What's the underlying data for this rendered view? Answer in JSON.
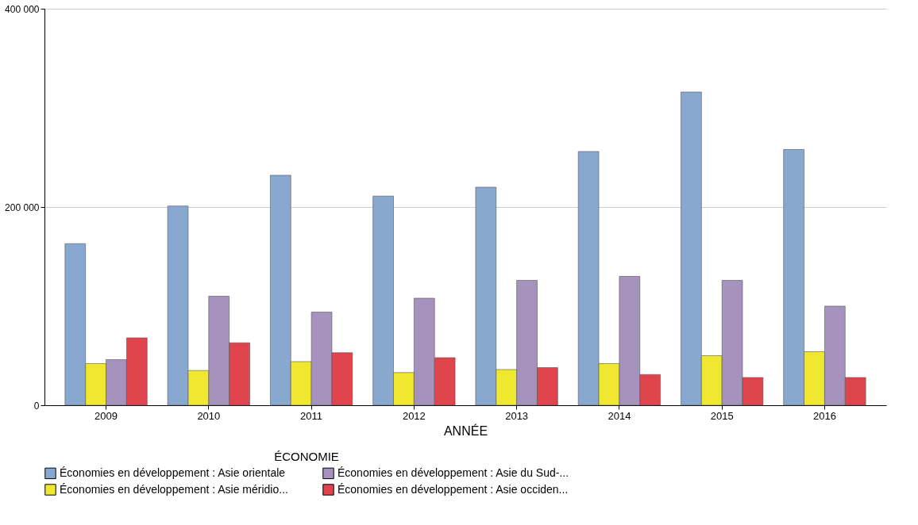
{
  "chart_data": {
    "type": "bar",
    "xlabel": "ANNÉE",
    "legend_title": "ÉCONOMIE",
    "categories": [
      "2009",
      "2010",
      "2011",
      "2012",
      "2013",
      "2014",
      "2015",
      "2016"
    ],
    "series": [
      {
        "name": "Économies en développement : Asie orientale",
        "color": "#89a8d0",
        "values": [
          163000,
          201000,
          232000,
          211000,
          220000,
          256000,
          316000,
          258000
        ]
      },
      {
        "name": "Économies en développement : Asie méridio...",
        "color": "#f0e830",
        "values": [
          42000,
          35000,
          44000,
          33000,
          36000,
          42000,
          50000,
          54000
        ]
      },
      {
        "name": "Économies en développement : Asie du Sud-...",
        "color": "#a593bd",
        "values": [
          46000,
          110000,
          94000,
          108000,
          126000,
          130000,
          126000,
          100000
        ]
      },
      {
        "name": "Économies en développement : Asie occiden...",
        "color": "#e0444c",
        "values": [
          68000,
          63000,
          53000,
          48000,
          38000,
          31000,
          28000,
          28000
        ]
      }
    ],
    "ylim": [
      0,
      400000
    ],
    "yticks": [
      0,
      {
        "value": 200000,
        "label": "200 000"
      },
      {
        "value": 400000,
        "label": "400 000"
      }
    ],
    "grid": "y",
    "legend": "bottom"
  }
}
